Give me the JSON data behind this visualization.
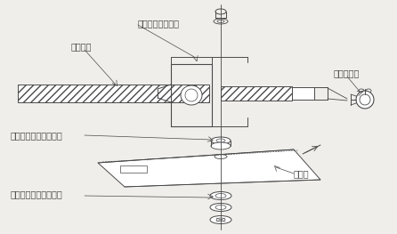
{
  "bg_color": "#f0eeea",
  "line_color": "#4a4a4a",
  "hatch_color": "#5a5a5a",
  "labels": {
    "heater_holder": "ヒーターホルダー",
    "heater": "ヒーター",
    "male_bushing": "合わせブッシングオス",
    "female_bushing": "合わせブッシングメス",
    "reflector": "反射板",
    "stopper": "ストッパー"
  },
  "font_size": 7,
  "title_font_size": 8
}
